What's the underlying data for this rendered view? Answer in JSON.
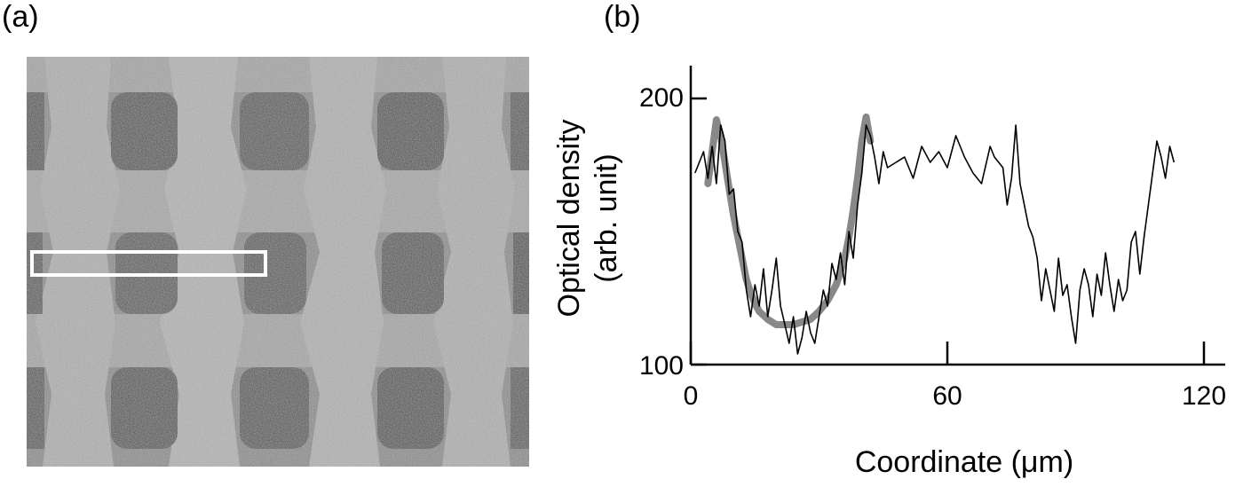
{
  "panels": {
    "a_label": "(a)",
    "b_label": "(b)"
  },
  "micrograph": {
    "description_icon": "grayscale-grid-micrograph",
    "roi_color": "#ffffff"
  },
  "chart_data": {
    "type": "line",
    "xlabel": "Coordinate (μm)",
    "ylabel_line1": "Optical density",
    "ylabel_line2": "(arb. unit)",
    "xlim": [
      0,
      124
    ],
    "ylim": [
      100,
      212
    ],
    "xticks": [
      0,
      60,
      120
    ],
    "yticks": [
      100,
      200
    ],
    "grid": false,
    "series": [
      {
        "role": "measured",
        "color": "#000000",
        "x": [
          1,
          3,
          4,
          5,
          6,
          7,
          8,
          9,
          10,
          11,
          12,
          13,
          14,
          15,
          16,
          17,
          18,
          19,
          20,
          21,
          22,
          23,
          24,
          25,
          26,
          27,
          28,
          29,
          30,
          31,
          32,
          33,
          34,
          35,
          36,
          37,
          38,
          39,
          40,
          41,
          42,
          43,
          44,
          45,
          46,
          48,
          50,
          52,
          54,
          56,
          58,
          60,
          62,
          64,
          66,
          68,
          70,
          71,
          72,
          73,
          74,
          75,
          76,
          77,
          78,
          79,
          80,
          81,
          82,
          83,
          84,
          85,
          86,
          87,
          88,
          89,
          90,
          91,
          92,
          93,
          94,
          95,
          96,
          97,
          98,
          99,
          100,
          101,
          102,
          103,
          104,
          105,
          106,
          107,
          108,
          109,
          110,
          111,
          112,
          113
        ],
        "y": [
          172,
          180,
          170,
          182,
          168,
          190,
          184,
          164,
          166,
          150,
          146,
          128,
          118,
          130,
          122,
          136,
          118,
          128,
          140,
          122,
          115,
          108,
          118,
          104,
          110,
          120,
          112,
          108,
          118,
          128,
          122,
          138,
          132,
          142,
          130,
          150,
          140,
          160,
          172,
          190,
          186,
          178,
          168,
          180,
          174,
          176,
          178,
          170,
          182,
          176,
          180,
          174,
          186,
          178,
          172,
          168,
          182,
          178,
          176,
          174,
          160,
          170,
          190,
          168,
          160,
          152,
          148,
          140,
          124,
          136,
          128,
          120,
          140,
          126,
          130,
          118,
          108,
          128,
          136,
          130,
          118,
          134,
          126,
          142,
          130,
          120,
          132,
          124,
          128,
          146,
          150,
          134,
          148,
          160,
          172,
          184,
          178,
          170,
          182,
          176
        ]
      },
      {
        "role": "fit",
        "color": "#888888",
        "x": [
          4,
          5,
          6,
          7,
          8,
          9,
          10,
          11,
          12,
          13,
          14,
          15,
          16,
          18,
          20,
          22,
          24,
          26,
          28,
          30,
          32,
          34,
          36,
          37,
          38,
          39,
          40,
          41,
          42
        ],
        "y": [
          168,
          180,
          192,
          186,
          176,
          166,
          156,
          148,
          140,
          132,
          127,
          123,
          120,
          117,
          115,
          115,
          115,
          116,
          117,
          120,
          124,
          130,
          140,
          148,
          158,
          170,
          184,
          193,
          184
        ]
      }
    ]
  }
}
